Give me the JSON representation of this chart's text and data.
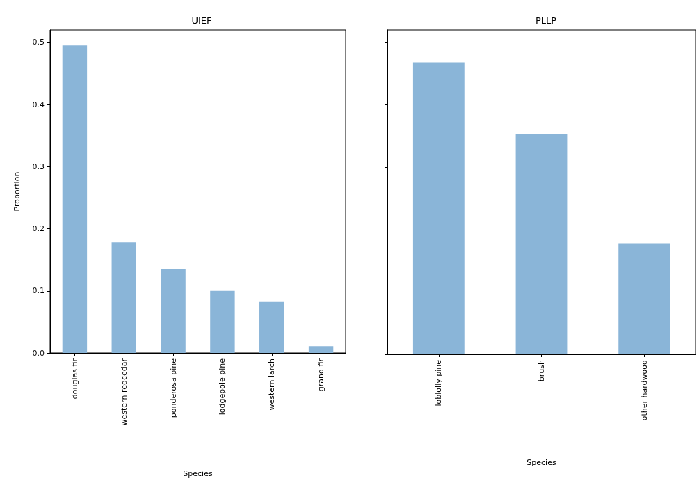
{
  "chart_data": [
    {
      "type": "bar",
      "title": "UIEF",
      "xlabel": "Species",
      "ylabel": "Proportion",
      "categories": [
        "douglas fir",
        "western redcedar",
        "ponderosa pine",
        "lodgepole pine",
        "western larch",
        "grand fir"
      ],
      "values": [
        0.495,
        0.178,
        0.135,
        0.1,
        0.082,
        0.011
      ],
      "color": "#8ab5d8",
      "ylim": [
        0,
        0.52
      ],
      "yticks": [
        {
          "value": 0,
          "label": "0.0"
        },
        0.1,
        0.2,
        0.3,
        0.4,
        0.5
      ],
      "grid": false
    },
    {
      "type": "bar",
      "title": "PLLP",
      "xlabel": "Species",
      "categories": [
        "loblolly pine",
        "brush",
        "other hardwood"
      ],
      "values": [
        0.468,
        0.353,
        0.178
      ],
      "color": "#8ab5d8",
      "ylim": [
        0,
        0.52
      ],
      "yticks": [
        0,
        0.1,
        0.2,
        0.3,
        0.4,
        0.5
      ],
      "grid": false,
      "tick_labels": "x"
    }
  ]
}
